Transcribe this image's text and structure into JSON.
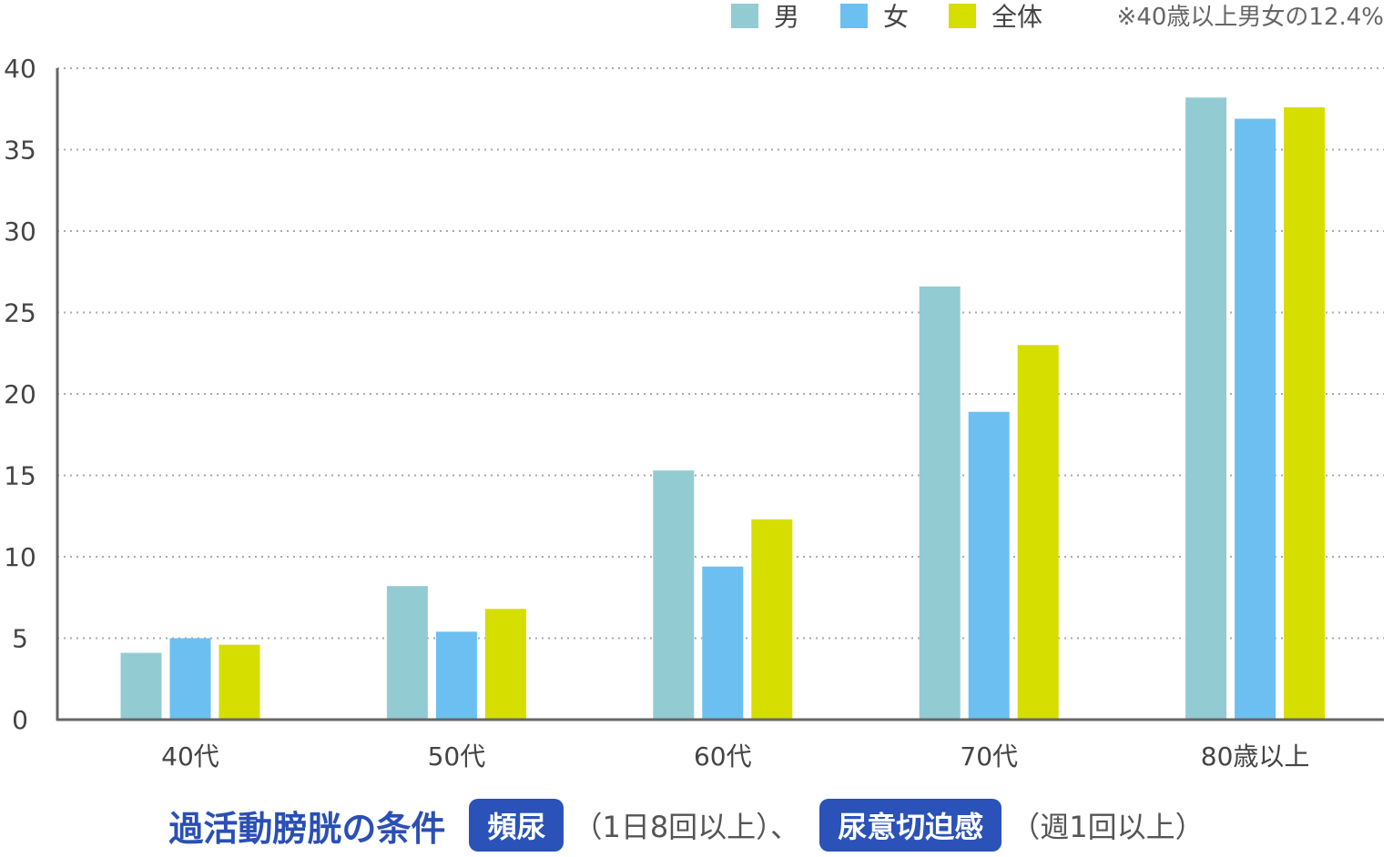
{
  "chart_data": {
    "type": "bar",
    "categories": [
      "40代",
      "50代",
      "60代",
      "70代",
      "80歳以上"
    ],
    "series": [
      {
        "name": "男",
        "color": "#93cbd3",
        "values": [
          4.1,
          8.2,
          15.3,
          26.6,
          38.2
        ]
      },
      {
        "name": "女",
        "color": "#6cc0f1",
        "values": [
          5.0,
          5.4,
          9.4,
          18.9,
          36.9
        ]
      },
      {
        "name": "全体",
        "color": "#d6de00",
        "values": [
          4.6,
          6.8,
          12.3,
          23.0,
          37.6
        ]
      }
    ],
    "ylim": [
      0,
      40
    ],
    "yticks": [
      0,
      5,
      10,
      15,
      20,
      25,
      30,
      35,
      40
    ],
    "grid": "horizontal-dotted",
    "legend_position": "top-right",
    "note": "※40歳以上男女の12.4%"
  },
  "conditions": {
    "title": "過活動膀胱の条件",
    "items": [
      {
        "badge": "頻尿",
        "detail": "（1日8回以上）、"
      },
      {
        "badge": "尿意切迫感",
        "detail": "（週1回以上）"
      }
    ]
  }
}
